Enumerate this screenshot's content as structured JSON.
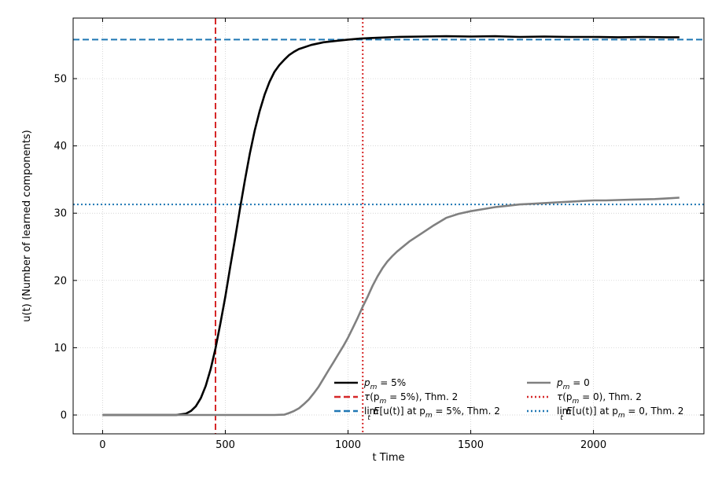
{
  "chart_data": {
    "type": "line",
    "title": "",
    "xlabel": "t Time",
    "ylabel": "u(t) (Number of learned components)",
    "xlim": [
      -120,
      2450
    ],
    "ylim": [
      -2.8,
      59
    ],
    "xticks": [
      0,
      500,
      1000,
      1500,
      2000
    ],
    "xtick_labels": [
      "0",
      "500",
      "1000",
      "1500",
      "2000"
    ],
    "yticks": [
      0,
      10,
      20,
      30,
      40,
      50
    ],
    "ytick_labels": [
      "0",
      "10",
      "20",
      "30",
      "40",
      "50"
    ],
    "grid": true,
    "legend_position": "lower-right",
    "series": [
      {
        "name": "p_m = 5%",
        "color": "#000000",
        "style": "solid",
        "x": [
          0,
          300,
          340,
          360,
          380,
          400,
          420,
          440,
          460,
          480,
          500,
          520,
          540,
          560,
          580,
          600,
          620,
          640,
          660,
          680,
          700,
          720,
          740,
          760,
          780,
          800,
          850,
          900,
          950,
          1000,
          1050,
          1100,
          1200,
          1300,
          1400,
          1500,
          1600,
          1700,
          1800,
          1900,
          2000,
          2100,
          2200,
          2300,
          2350
        ],
        "y": [
          0,
          0,
          0.2,
          0.6,
          1.3,
          2.5,
          4.3,
          6.8,
          9.9,
          13.6,
          17.6,
          22.0,
          26.3,
          30.7,
          34.9,
          38.9,
          42.3,
          45.2,
          47.6,
          49.5,
          51.0,
          52.0,
          52.8,
          53.5,
          54.0,
          54.4,
          55.0,
          55.4,
          55.6,
          55.8,
          55.95,
          56.05,
          56.2,
          56.25,
          56.3,
          56.25,
          56.3,
          56.2,
          56.25,
          56.2,
          56.2,
          56.15,
          56.2,
          56.15,
          56.15
        ]
      },
      {
        "name": "p_m = 0",
        "color": "#808080",
        "style": "solid",
        "x": [
          0,
          700,
          740,
          760,
          780,
          800,
          820,
          840,
          860,
          880,
          900,
          920,
          940,
          960,
          980,
          1000,
          1020,
          1040,
          1060,
          1080,
          1100,
          1120,
          1140,
          1160,
          1180,
          1200,
          1250,
          1300,
          1350,
          1400,
          1450,
          1500,
          1550,
          1600,
          1650,
          1700,
          1750,
          1800,
          1850,
          1900,
          1950,
          2000,
          2050,
          2100,
          2150,
          2200,
          2250,
          2300,
          2350
        ],
        "y": [
          0,
          0,
          0.05,
          0.3,
          0.6,
          1.0,
          1.6,
          2.3,
          3.2,
          4.2,
          5.4,
          6.6,
          7.8,
          9.0,
          10.2,
          11.5,
          13.0,
          14.5,
          16.1,
          17.6,
          19.2,
          20.6,
          21.8,
          22.8,
          23.6,
          24.3,
          25.8,
          27.0,
          28.2,
          29.3,
          29.9,
          30.3,
          30.6,
          30.9,
          31.1,
          31.3,
          31.4,
          31.5,
          31.6,
          31.7,
          31.8,
          31.9,
          31.9,
          31.95,
          32.0,
          32.05,
          32.1,
          32.2,
          32.3
        ]
      }
    ],
    "reference_lines": [
      {
        "name": "τ(p_m = 5%), Thm. 2",
        "orientation": "vertical",
        "value": 460,
        "color": "#d62728",
        "style": "dashed"
      },
      {
        "name": "τ(p_m = 0), Thm. 2",
        "orientation": "vertical",
        "value": 1060,
        "color": "#d62728",
        "style": "dotted"
      },
      {
        "name": "lim E[u(t)] at p_m = 5%, Thm. 2",
        "orientation": "horizontal",
        "value": 55.8,
        "color": "#1f77b4",
        "style": "dashed"
      },
      {
        "name": "lim E[u(t)] at p_m = 0, Thm. 2",
        "orientation": "horizontal",
        "value": 31.3,
        "color": "#1f77b4",
        "style": "dotted"
      }
    ],
    "legend": {
      "left": [
        {
          "key": "pm5",
          "pre": "",
          "math": "p",
          "sub": "m",
          "post": " = 5%"
        },
        {
          "key": "tau5",
          "pre": "",
          "math": "τ",
          "sub": "m",
          "post": " = 5%), Thm. 2",
          "open": "(p"
        },
        {
          "key": "lim5",
          "pre": "lim",
          "math": "E",
          "sub": "m",
          "post": " = 5%, Thm. 2",
          "mid": "[u(t)] at p"
        }
      ],
      "right": [
        {
          "key": "pm0",
          "pre": "",
          "math": "p",
          "sub": "m",
          "post": " = 0"
        },
        {
          "key": "tau0",
          "pre": "",
          "math": "τ",
          "sub": "m",
          "post": " = 0), Thm. 2",
          "open": "(p"
        },
        {
          "key": "lim0",
          "pre": "lim",
          "math": "E",
          "sub": "m",
          "post": " = 0, Thm. 2",
          "mid": "[u(t)] at p"
        }
      ],
      "lim_subscript": "t"
    }
  }
}
